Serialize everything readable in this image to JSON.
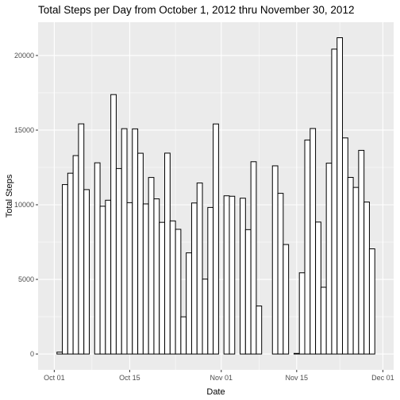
{
  "chart_data": {
    "type": "bar",
    "title": "Total Steps per Day from October 1, 2012 thru November 30, 2012",
    "xlabel": "Date",
    "ylabel": "Total Steps",
    "x_tick_labels": [
      "Oct 01",
      "Oct 15",
      "Nov 01",
      "Nov 15",
      "Dec 01"
    ],
    "y_tick_labels": [
      "0",
      "5000",
      "10000",
      "15000",
      "20000"
    ],
    "y_ticks": [
      0,
      5000,
      10000,
      15000,
      20000
    ],
    "ylim": [
      -1060,
      22230
    ],
    "xlim": [
      "2012-09-28",
      "2012-12-03"
    ],
    "x_tick_dates": [
      "2012-10-01",
      "2012-10-15",
      "2012-11-01",
      "2012-11-15",
      "2012-12-01"
    ],
    "categories": [
      "2012-10-01",
      "2012-10-02",
      "2012-10-03",
      "2012-10-04",
      "2012-10-05",
      "2012-10-06",
      "2012-10-07",
      "2012-10-08",
      "2012-10-09",
      "2012-10-10",
      "2012-10-11",
      "2012-10-12",
      "2012-10-13",
      "2012-10-14",
      "2012-10-15",
      "2012-10-16",
      "2012-10-17",
      "2012-10-18",
      "2012-10-19",
      "2012-10-20",
      "2012-10-21",
      "2012-10-22",
      "2012-10-23",
      "2012-10-24",
      "2012-10-25",
      "2012-10-26",
      "2012-10-27",
      "2012-10-28",
      "2012-10-29",
      "2012-10-30",
      "2012-10-31",
      "2012-11-01",
      "2012-11-02",
      "2012-11-03",
      "2012-11-04",
      "2012-11-05",
      "2012-11-06",
      "2012-11-07",
      "2012-11-08",
      "2012-11-09",
      "2012-11-10",
      "2012-11-11",
      "2012-11-12",
      "2012-11-13",
      "2012-11-14",
      "2012-11-15",
      "2012-11-16",
      "2012-11-17",
      "2012-11-18",
      "2012-11-19",
      "2012-11-20",
      "2012-11-21",
      "2012-11-22",
      "2012-11-23",
      "2012-11-24",
      "2012-11-25",
      "2012-11-26",
      "2012-11-27",
      "2012-11-28",
      "2012-11-29",
      "2012-11-30"
    ],
    "values": [
      0,
      126,
      11352,
      12116,
      13294,
      15420,
      11015,
      0,
      12811,
      9900,
      10304,
      17382,
      12426,
      15098,
      10139,
      15084,
      13452,
      10056,
      11829,
      10395,
      8821,
      13460,
      8918,
      8355,
      2492,
      6778,
      10119,
      11458,
      5018,
      9819,
      15414,
      0,
      10600,
      10571,
      0,
      10439,
      8334,
      12883,
      3219,
      0,
      0,
      12608,
      10765,
      7336,
      0,
      41,
      5441,
      14339,
      15110,
      8841,
      4472,
      12787,
      20427,
      21194,
      14478,
      11834,
      11162,
      13646,
      10183,
      7047,
      0
    ],
    "grid": true,
    "legend": "none",
    "colors": {
      "panel_background": "#ebebeb",
      "grid_major": "#ffffff",
      "bar_fill": "#ffffff",
      "bar_outline": "#000000",
      "tick_text": "#4d4d4d",
      "tick_mark": "#333333"
    }
  }
}
